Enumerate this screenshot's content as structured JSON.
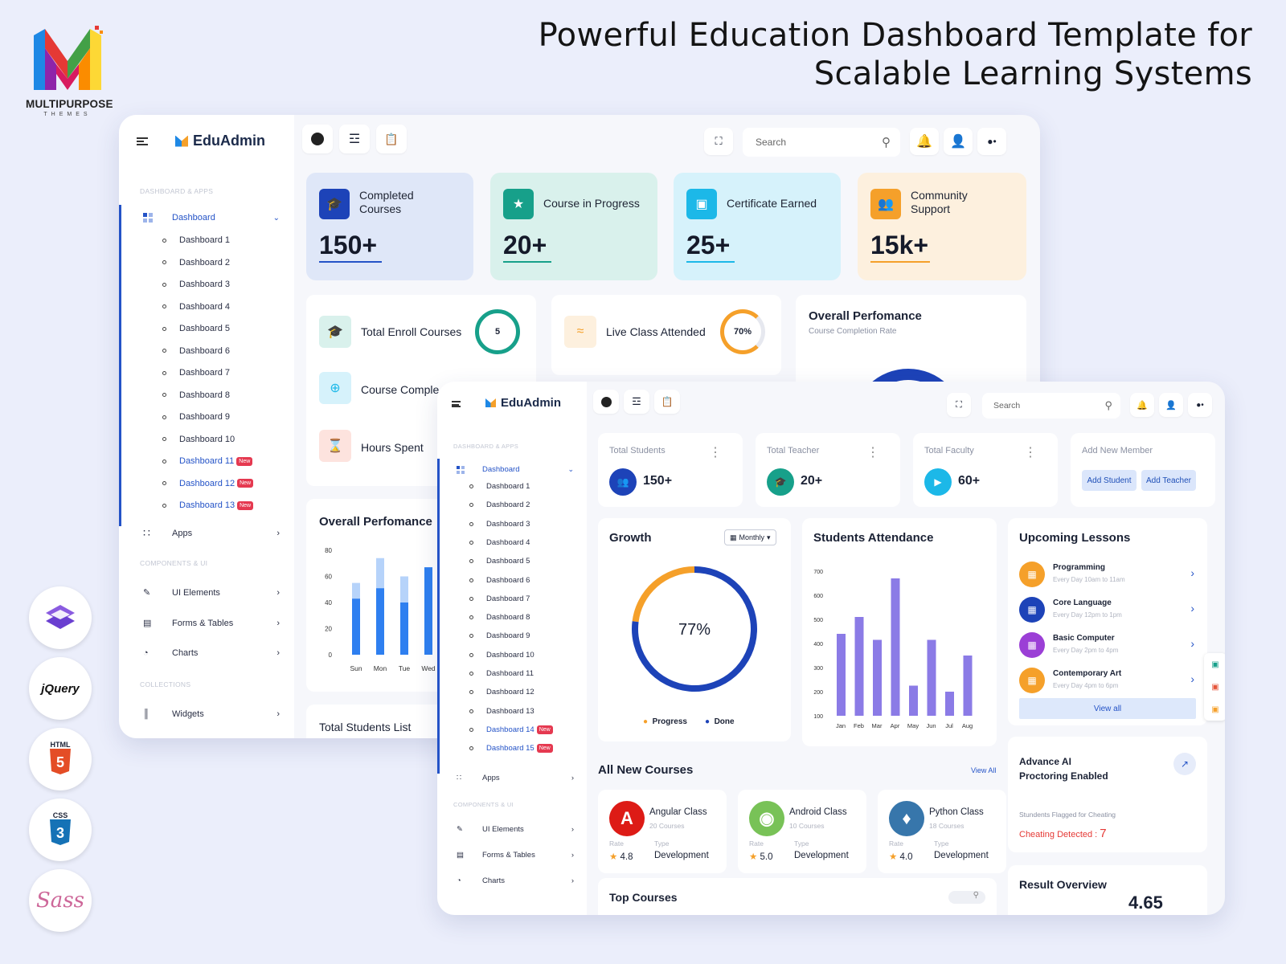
{
  "hero": {
    "line1": "Powerful Education Dashboard Template for",
    "line2": "Scalable Learning Systems"
  },
  "logo": {
    "name": "MULTIPURPOSE",
    "sub": "THEMES"
  },
  "tech": [
    "bootstrap-icon",
    "jquery-icon",
    "html5-icon",
    "css3-icon",
    "sass-icon"
  ],
  "tech_labels": {
    "jquery": "jQuery",
    "html": "HTML",
    "css": "CSS",
    "sass": "Sass"
  },
  "back": {
    "brand": "EduAdmin",
    "search_placeholder": "Search",
    "sections": {
      "apps": "DASHBOARD & APPS",
      "components": "COMPONENTS & UI",
      "collections": "COLLECTIONS"
    },
    "nav_main": "Dashboard",
    "dashboards": [
      "Dashboard 1",
      "Dashboard 2",
      "Dashboard 3",
      "Dashboard 4",
      "Dashboard 5",
      "Dashboard 6",
      "Dashboard 7",
      "Dashboard 8",
      "Dashboard 9",
      "Dashboard 10",
      "Dashboard 11",
      "Dashboard 12",
      "Dashboard 13"
    ],
    "new_label": "New",
    "nav_apps": "Apps",
    "nav_ui": "UI Elements",
    "nav_forms": "Forms & Tables",
    "nav_charts": "Charts",
    "nav_widgets": "Widgets",
    "stats": [
      {
        "label": "Completed Courses",
        "value": "150+"
      },
      {
        "label": "Course in Progress",
        "value": "20+"
      },
      {
        "label": "Certificate Earned",
        "value": "25+"
      },
      {
        "label": "Community Support",
        "value": "15k+"
      }
    ],
    "enroll": {
      "label": "Total Enroll Courses",
      "value": "5"
    },
    "complete": {
      "label": "Course Comple"
    },
    "hours": {
      "label": "Hours Spent"
    },
    "live": {
      "label": "Live Class Attended",
      "value": "70%"
    },
    "perf": {
      "title": "Overall Perfomance",
      "sub": "Course Completion Rate"
    },
    "perf2": {
      "title": "Overall Perfomance"
    },
    "students_list": "Total Students List"
  },
  "chart_data": [
    {
      "type": "bar",
      "title": "Overall Perfomance",
      "categories": [
        "Sun",
        "Mon",
        "Tue",
        "Wed"
      ],
      "series": [
        {
          "values": [
            43,
            51,
            40,
            67
          ]
        },
        {
          "values": [
            12,
            23,
            20,
            0
          ]
        }
      ],
      "yticks": [
        0,
        20,
        40,
        60,
        80
      ],
      "ylim": [
        0,
        80
      ]
    },
    {
      "type": "bar",
      "title": "Students Attendance",
      "categories": [
        "Jan",
        "Feb",
        "Mar",
        "Apr",
        "May",
        "Jun",
        "Jul",
        "Aug"
      ],
      "values": [
        440,
        510,
        415,
        670,
        225,
        415,
        200,
        350
      ],
      "yticks": [
        100,
        200,
        300,
        400,
        500,
        600,
        700
      ],
      "ylim": [
        100,
        700
      ]
    },
    {
      "type": "pie",
      "title": "Growth",
      "center_label": "77%",
      "slices": [
        {
          "name": "Progress",
          "value": 23
        },
        {
          "name": "Done",
          "value": 77
        }
      ]
    }
  ],
  "front": {
    "brand": "EduAdmin",
    "search_placeholder": "Search",
    "sections": {
      "apps": "DASHBOARD & APPS",
      "components": "COMPONENTS & UI"
    },
    "nav_main": "Dashboard",
    "dashboards": [
      "Dashboard 1",
      "Dashboard 2",
      "Dashboard 3",
      "Dashboard 4",
      "Dashboard 5",
      "Dashboard 6",
      "Dashboard 7",
      "Dashboard 8",
      "Dashboard 9",
      "Dashboard 10",
      "Dashboard 11",
      "Dashboard 12",
      "Dashboard 13",
      "Dashboard 14",
      "Dashboard 15"
    ],
    "new_label": "New",
    "nav_apps": "Apps",
    "nav_ui": "UI Elements",
    "nav_forms": "Forms & Tables",
    "nav_charts": "Charts",
    "stats": [
      {
        "label": "Total Students",
        "value": "150+"
      },
      {
        "label": "Total Teacher",
        "value": "20+"
      },
      {
        "label": "Total Faculty",
        "value": "60+"
      }
    ],
    "add_member": {
      "title": "Add New Member",
      "student": "Add Student",
      "teacher": "Add Teacher"
    },
    "growth": {
      "title": "Growth",
      "period": "Monthly",
      "legend_progress": "Progress",
      "legend_done": "Done"
    },
    "attendance_title": "Students Attendance",
    "lessons": {
      "title": "Upcoming Lessons",
      "items": [
        {
          "name": "Programming",
          "time": "Every Day 10am to 11am"
        },
        {
          "name": "Core Language",
          "time": "Every Day 12pm to 1pm"
        },
        {
          "name": "Basic Computer",
          "time": "Every Day 2pm to 4pm"
        },
        {
          "name": "Contemporary Art",
          "time": "Every Day 4pm to 6pm"
        }
      ],
      "view_all": "View all"
    },
    "courses": {
      "title": "All New Courses",
      "view_all": "View All",
      "rate_label": "Rate",
      "type_label": "Type",
      "items": [
        {
          "name": "Angular Class",
          "count": "20 Courses",
          "rate": "4.8",
          "type": "Development"
        },
        {
          "name": "Android Class",
          "count": "10 Courses",
          "rate": "5.0",
          "type": "Development"
        },
        {
          "name": "Python Class",
          "count": "18 Courses",
          "rate": "4.0",
          "type": "Development"
        }
      ]
    },
    "proctor": {
      "title1": "Advance AI",
      "title2": "Proctoring Enabled",
      "sub": "Stundents Flagged for Cheating",
      "detect": "Cheating Detected :",
      "count": "7"
    },
    "top_courses": "Top Courses",
    "result": {
      "title": "Result Overview",
      "value": "4.65"
    }
  },
  "colors": {
    "primary": "#2453c7",
    "teal": "#17a08a",
    "cyan": "#1cb8e8",
    "orange": "#f5a02a",
    "purple": "#8b7be6"
  }
}
